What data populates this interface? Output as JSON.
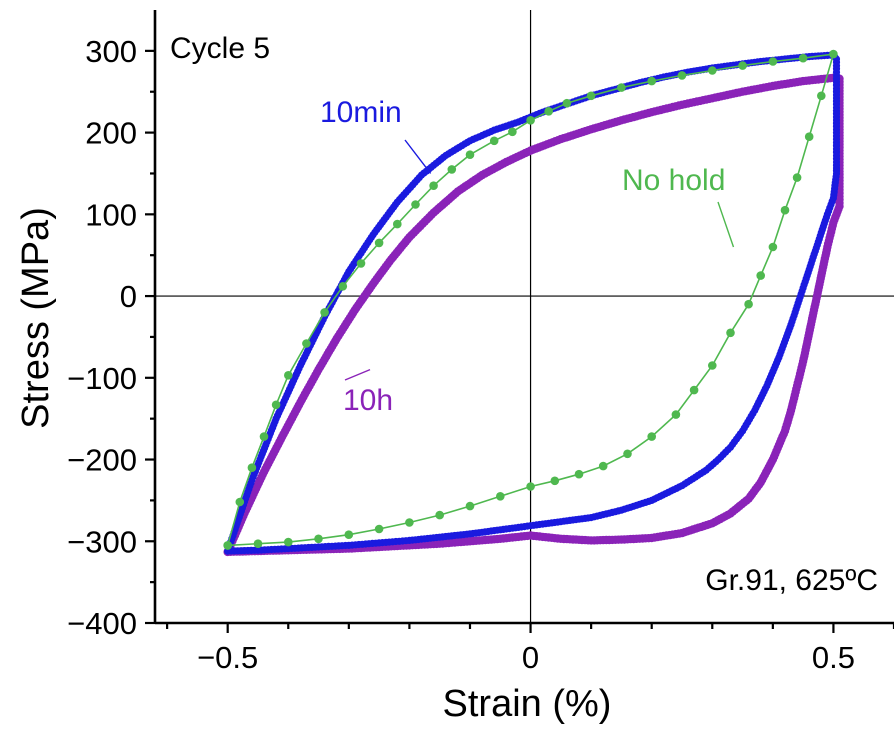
{
  "chart_data": {
    "type": "scatter",
    "title": "",
    "xlabel": "Strain (%)",
    "ylabel": "Stress (MPa)",
    "xlim": [
      -0.62,
      0.6
    ],
    "ylim": [
      -400,
      350
    ],
    "x_ticks": [
      -0.5,
      0,
      0.5
    ],
    "x_tick_labels": [
      "−0.5",
      "0",
      "0.5"
    ],
    "y_ticks": [
      -400,
      -300,
      -200,
      -100,
      0,
      100,
      200,
      300
    ],
    "y_tick_labels": [
      "−400",
      "−300",
      "−200",
      "−100",
      "0",
      "100",
      "200",
      "300"
    ],
    "zero_lines": true,
    "grid": false,
    "annotations": {
      "cycle": "Cycle 5",
      "material": "Gr.91, 625ºC"
    },
    "colors": {
      "ten_min": "#1a1adf",
      "ten_h": "#8a23b8",
      "no_hold": "#4fb84f"
    },
    "series": [
      {
        "name": "10min",
        "key": "ten_min",
        "label_at": [
          -0.165,
          150
        ],
        "points": [
          [
            -0.5,
            -312
          ],
          [
            -0.46,
            -225
          ],
          [
            -0.42,
            -150
          ],
          [
            -0.38,
            -85
          ],
          [
            -0.34,
            -25
          ],
          [
            -0.3,
            30
          ],
          [
            -0.26,
            75
          ],
          [
            -0.22,
            115
          ],
          [
            -0.18,
            148
          ],
          [
            -0.14,
            172
          ],
          [
            -0.1,
            190
          ],
          [
            -0.06,
            203
          ],
          [
            -0.02,
            213
          ],
          [
            0.02,
            225
          ],
          [
            0.06,
            235
          ],
          [
            0.1,
            245
          ],
          [
            0.14,
            253
          ],
          [
            0.18,
            261
          ],
          [
            0.22,
            268
          ],
          [
            0.26,
            274
          ],
          [
            0.3,
            279
          ],
          [
            0.34,
            283
          ],
          [
            0.38,
            287
          ],
          [
            0.42,
            290
          ],
          [
            0.46,
            293
          ],
          [
            0.5,
            295
          ],
          [
            0.505,
            290
          ],
          [
            0.505,
            250
          ],
          [
            0.505,
            200
          ],
          [
            0.505,
            160
          ],
          [
            0.505,
            150
          ],
          [
            0.5,
            120
          ],
          [
            0.49,
            100
          ],
          [
            0.47,
            55
          ],
          [
            0.45,
            10
          ],
          [
            0.43,
            -35
          ],
          [
            0.41,
            -75
          ],
          [
            0.39,
            -110
          ],
          [
            0.37,
            -140
          ],
          [
            0.35,
            -165
          ],
          [
            0.33,
            -185
          ],
          [
            0.31,
            -200
          ],
          [
            0.29,
            -213
          ],
          [
            0.25,
            -232
          ],
          [
            0.2,
            -250
          ],
          [
            0.15,
            -262
          ],
          [
            0.1,
            -271
          ],
          [
            0.05,
            -276
          ],
          [
            0,
            -281
          ],
          [
            -0.05,
            -286
          ],
          [
            -0.1,
            -291
          ],
          [
            -0.15,
            -295
          ],
          [
            -0.2,
            -299
          ],
          [
            -0.25,
            -302
          ],
          [
            -0.3,
            -305
          ],
          [
            -0.35,
            -307
          ],
          [
            -0.4,
            -309
          ],
          [
            -0.45,
            -311
          ],
          [
            -0.5,
            -312
          ]
        ]
      },
      {
        "name": "10h",
        "key": "ten_h",
        "label_at": [
          -0.265,
          -90
        ],
        "points": [
          [
            -0.5,
            -313
          ],
          [
            -0.47,
            -262
          ],
          [
            -0.44,
            -215
          ],
          [
            -0.41,
            -172
          ],
          [
            -0.38,
            -130
          ],
          [
            -0.35,
            -90
          ],
          [
            -0.32,
            -52
          ],
          [
            -0.29,
            -17
          ],
          [
            -0.26,
            15
          ],
          [
            -0.23,
            45
          ],
          [
            -0.2,
            72
          ],
          [
            -0.16,
            102
          ],
          [
            -0.12,
            128
          ],
          [
            -0.08,
            148
          ],
          [
            -0.04,
            164
          ],
          [
            0,
            178
          ],
          [
            0.05,
            192
          ],
          [
            0.1,
            204
          ],
          [
            0.15,
            215
          ],
          [
            0.2,
            225
          ],
          [
            0.25,
            234
          ],
          [
            0.3,
            242
          ],
          [
            0.35,
            250
          ],
          [
            0.4,
            257
          ],
          [
            0.45,
            263
          ],
          [
            0.5,
            267
          ],
          [
            0.51,
            266
          ],
          [
            0.51,
            240
          ],
          [
            0.51,
            200
          ],
          [
            0.51,
            160
          ],
          [
            0.51,
            130
          ],
          [
            0.51,
            110
          ],
          [
            0.5,
            90
          ],
          [
            0.49,
            60
          ],
          [
            0.48,
            25
          ],
          [
            0.47,
            -10
          ],
          [
            0.46,
            -45
          ],
          [
            0.45,
            -80
          ],
          [
            0.44,
            -110
          ],
          [
            0.43,
            -140
          ],
          [
            0.42,
            -165
          ],
          [
            0.4,
            -200
          ],
          [
            0.38,
            -228
          ],
          [
            0.36,
            -248
          ],
          [
            0.33,
            -266
          ],
          [
            0.3,
            -278
          ],
          [
            0.25,
            -290
          ],
          [
            0.2,
            -296
          ],
          [
            0.15,
            -298
          ],
          [
            0.1,
            -299
          ],
          [
            0.05,
            -297
          ],
          [
            0,
            -293
          ],
          [
            -0.05,
            -297
          ],
          [
            -0.1,
            -300
          ],
          [
            -0.15,
            -303
          ],
          [
            -0.2,
            -305
          ],
          [
            -0.25,
            -307
          ],
          [
            -0.3,
            -309
          ],
          [
            -0.35,
            -310
          ],
          [
            -0.4,
            -311
          ],
          [
            -0.45,
            -312
          ],
          [
            -0.5,
            -313
          ]
        ]
      },
      {
        "name": "No hold",
        "key": "no_hold",
        "label_at": [
          0.335,
          60
        ],
        "points": [
          [
            -0.5,
            -305
          ],
          [
            -0.48,
            -252
          ],
          [
            -0.46,
            -210
          ],
          [
            -0.44,
            -172
          ],
          [
            -0.42,
            -133
          ],
          [
            -0.4,
            -97
          ],
          [
            -0.37,
            -58
          ],
          [
            -0.34,
            -20
          ],
          [
            -0.31,
            12
          ],
          [
            -0.28,
            40
          ],
          [
            -0.25,
            65
          ],
          [
            -0.22,
            88
          ],
          [
            -0.19,
            112
          ],
          [
            -0.16,
            135
          ],
          [
            -0.13,
            155
          ],
          [
            -0.1,
            173
          ],
          [
            -0.06,
            190
          ],
          [
            -0.03,
            201
          ],
          [
            0,
            215
          ],
          [
            0.03,
            226
          ],
          [
            0.06,
            236
          ],
          [
            0.1,
            245
          ],
          [
            0.15,
            255
          ],
          [
            0.2,
            263
          ],
          [
            0.25,
            270
          ],
          [
            0.3,
            276
          ],
          [
            0.35,
            282
          ],
          [
            0.4,
            287
          ],
          [
            0.45,
            291
          ],
          [
            0.5,
            296
          ],
          [
            0.48,
            245
          ],
          [
            0.46,
            195
          ],
          [
            0.44,
            145
          ],
          [
            0.42,
            105
          ],
          [
            0.4,
            60
          ],
          [
            0.38,
            25
          ],
          [
            0.36,
            -10
          ],
          [
            0.33,
            -45
          ],
          [
            0.3,
            -85
          ],
          [
            0.27,
            -115
          ],
          [
            0.24,
            -145
          ],
          [
            0.2,
            -172
          ],
          [
            0.16,
            -193
          ],
          [
            0.12,
            -208
          ],
          [
            0.08,
            -218
          ],
          [
            0.04,
            -226
          ],
          [
            0,
            -233
          ],
          [
            -0.05,
            -245
          ],
          [
            -0.1,
            -257
          ],
          [
            -0.15,
            -268
          ],
          [
            -0.2,
            -277
          ],
          [
            -0.25,
            -285
          ],
          [
            -0.3,
            -292
          ],
          [
            -0.35,
            -297
          ],
          [
            -0.4,
            -301
          ],
          [
            -0.45,
            -303
          ],
          [
            -0.5,
            -305
          ]
        ]
      }
    ]
  }
}
